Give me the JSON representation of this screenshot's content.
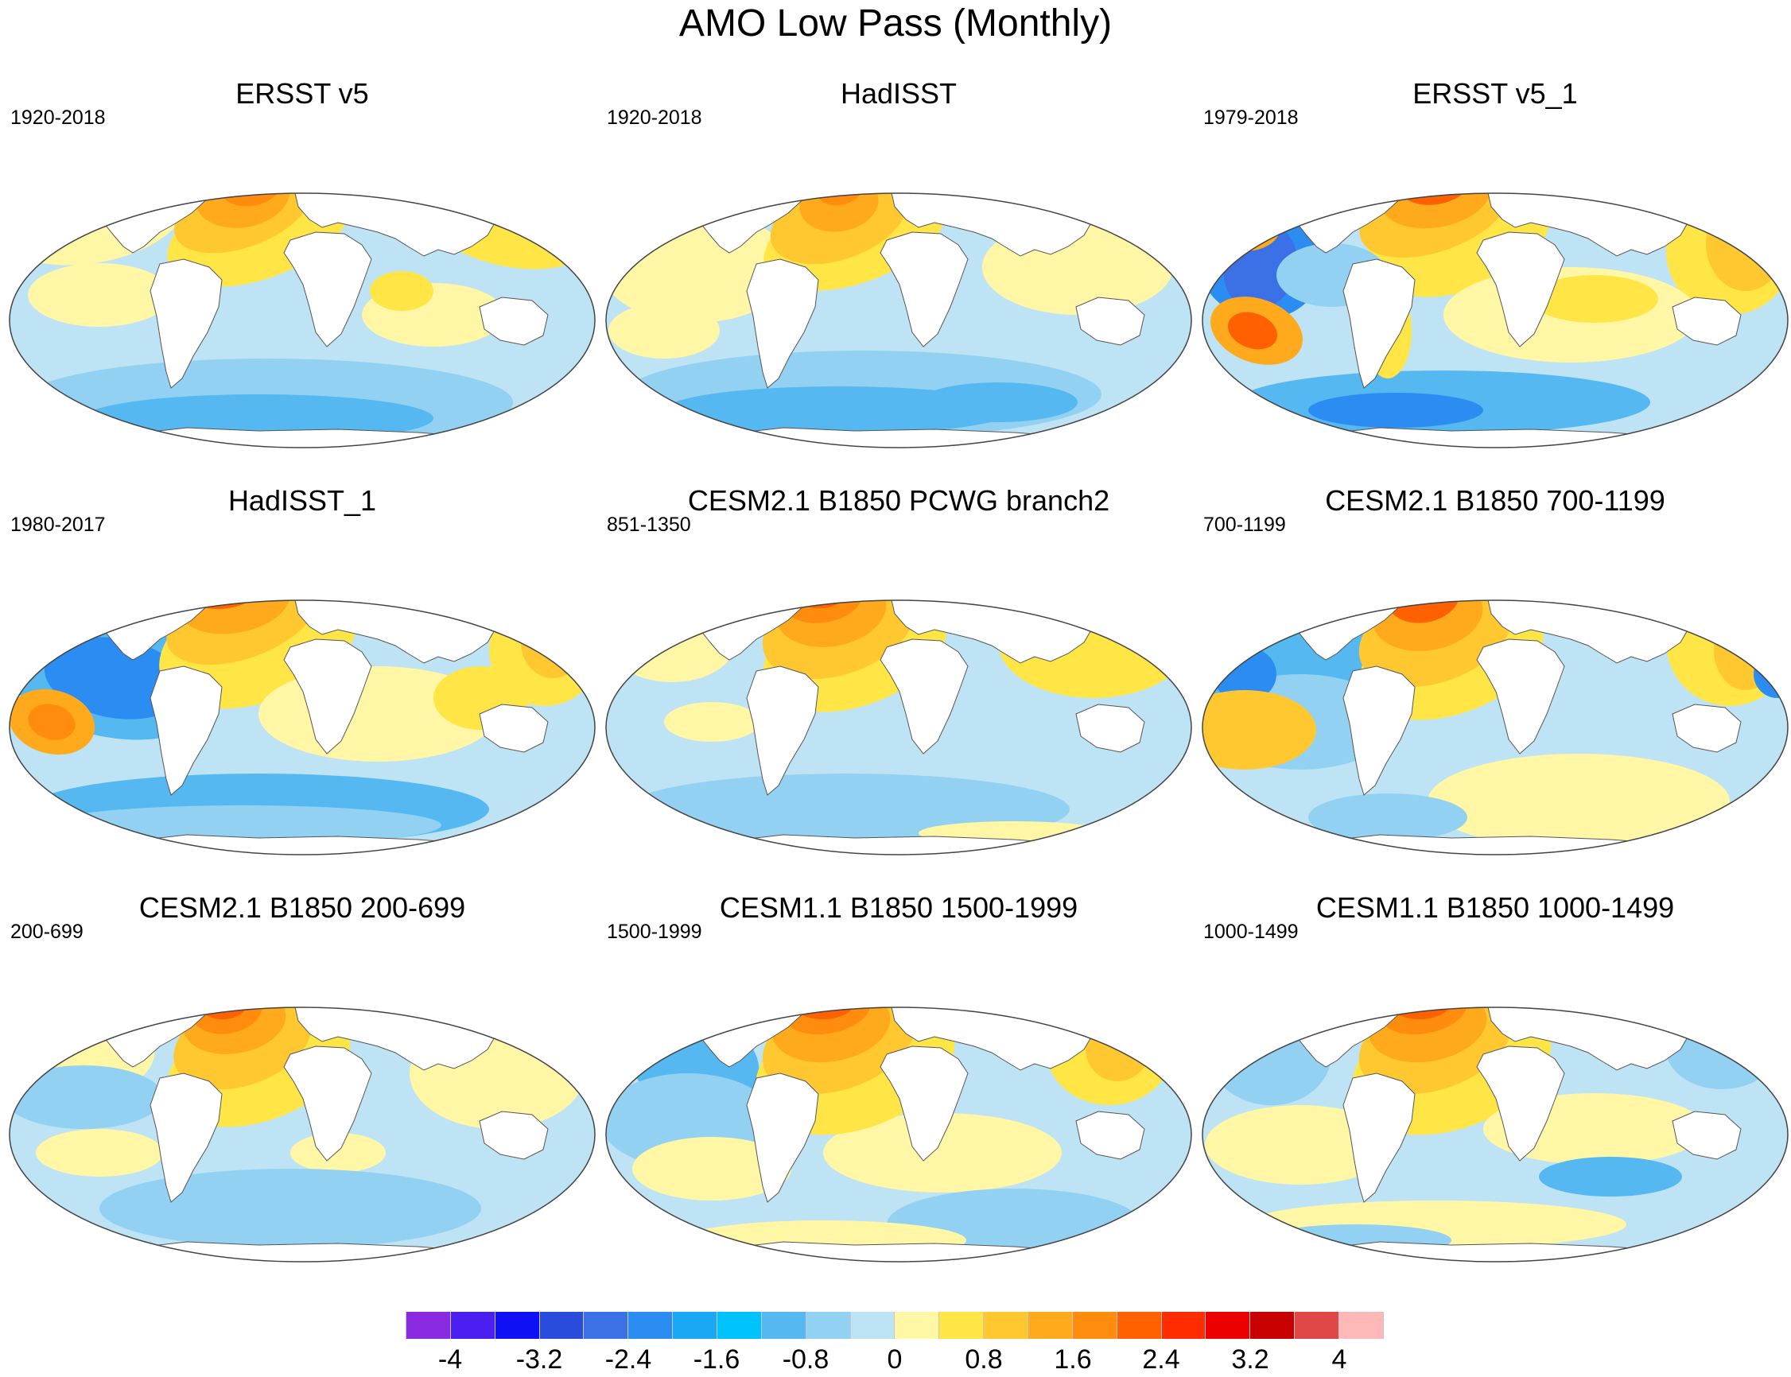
{
  "title": "AMO Low Pass (Monthly)",
  "panels": [
    {
      "title": "ERSST v5",
      "period": "1920-2018",
      "pattern": "obs_long"
    },
    {
      "title": "HadISST",
      "period": "1920-2018",
      "pattern": "obs_noisy"
    },
    {
      "title": "ERSST v5_1",
      "period": "1979-2018",
      "pattern": "obs_recent"
    },
    {
      "title": "HadISST_1",
      "period": "1980-2017",
      "pattern": "obs_recent_noisy"
    },
    {
      "title": "CESM2.1 B1850 PCWG branch2",
      "period": "851-1350",
      "pattern": "model_strong"
    },
    {
      "title": "CESM2.1 B1850 700-1199",
      "period": "700-1199",
      "pattern": "model_strong_pacific"
    },
    {
      "title": "CESM2.1 B1850 200-699",
      "period": "200-699",
      "pattern": "model_mid"
    },
    {
      "title": "CESM1.1 B1850 1500-1999",
      "period": "1500-1999",
      "pattern": "model_cesm1"
    },
    {
      "title": "CESM1.1 B1850 1000-1499",
      "period": "1000-1499",
      "pattern": "model_cesm1_b"
    }
  ],
  "colorbar": {
    "labels": [
      "-4",
      "-3.2",
      "-2.4",
      "-1.6",
      "-0.8",
      "0",
      "0.8",
      "1.6",
      "2.4",
      "3.2",
      "4"
    ],
    "colors": [
      "#8a2be2",
      "#4a1ff0",
      "#1010f5",
      "#2a4cdc",
      "#3c70e6",
      "#2b8df2",
      "#1aa8f5",
      "#00c3fb",
      "#55b8f1",
      "#93d1f2",
      "#bde3f5",
      "#fff7a6",
      "#ffe546",
      "#ffc830",
      "#ffaa1c",
      "#ff8c0c",
      "#ff6000",
      "#ff2c00",
      "#ec0000",
      "#c80000",
      "#e04848",
      "#ffb8b8"
    ]
  },
  "palette": {
    "ocean_base": "#bde3f5",
    "land": "#ffffff",
    "outline": "#555555"
  }
}
